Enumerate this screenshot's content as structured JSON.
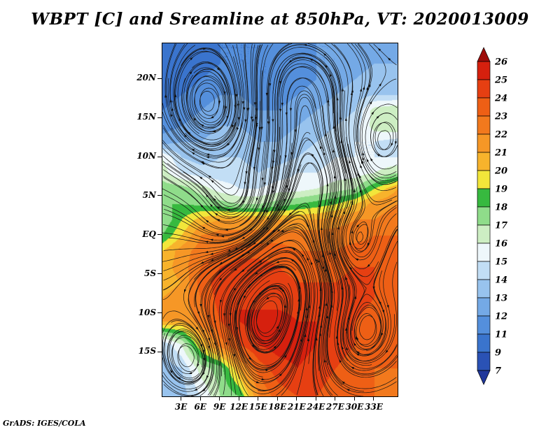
{
  "title": "WBPT [C] and Sreamline at 850hPa, VT: 2020013009",
  "footer": "GrADS: IGES/COLA",
  "axes": {
    "lat_labels": [
      "20N",
      "15N",
      "10N",
      "5N",
      "EQ",
      "5S",
      "10S",
      "15S"
    ],
    "lat_values": [
      20,
      15,
      10,
      5,
      0,
      -5,
      -10,
      -15
    ],
    "lon_labels": [
      "3E",
      "6E",
      "9E",
      "12E",
      "15E",
      "18E",
      "21E",
      "24E",
      "27E",
      "30E",
      "33E"
    ],
    "lon_values": [
      3,
      6,
      9,
      12,
      15,
      18,
      21,
      24,
      27,
      30,
      33
    ],
    "lon_range": [
      0,
      36.6
    ],
    "lat_range": [
      -20.6,
      24.6
    ]
  },
  "colorbar": {
    "labels": [
      "26",
      "25",
      "24",
      "23",
      "22",
      "21",
      "20",
      "19",
      "18",
      "17",
      "16",
      "15",
      "14",
      "13",
      "12",
      "11",
      "9",
      "7"
    ]
  },
  "chart_data": {
    "type": "heatmap",
    "title": "WBPT [C] and Sreamline at 850hPa, VT: 2020013009",
    "variable": "WBPT",
    "units": "C",
    "level": "850hPa",
    "valid_time": "2020013009",
    "overlay": "streamlines",
    "legend_position": "right",
    "levels": [
      7,
      9,
      11,
      12,
      13,
      14,
      15,
      16,
      17,
      18,
      19,
      20,
      21,
      22,
      23,
      24,
      25,
      26
    ],
    "palette": [
      "#20379b",
      "#2a52b5",
      "#3a74cd",
      "#548fdc",
      "#74a9e6",
      "#98c3ee",
      "#c2def5",
      "#eef7fb",
      "#cdeec3",
      "#8fdc8a",
      "#37b93f",
      "#f2e63a",
      "#f7b32c",
      "#f69726",
      "#f2791d",
      "#ee5f15",
      "#e63f12",
      "#d6200e",
      "#9e0d0a"
    ],
    "grid": {
      "lons": [
        0,
        3,
        6,
        9,
        12,
        15,
        18,
        21,
        24,
        27,
        30,
        33,
        36.6
      ],
      "lats": [
        24.6,
        22,
        20,
        18,
        16,
        14,
        12,
        10,
        8,
        6,
        4,
        2,
        0,
        -2,
        -4,
        -6,
        -8,
        -11,
        -14,
        -17,
        -20.6
      ],
      "values": [
        [
          10,
          10,
          10.5,
          11,
          11,
          11,
          11.5,
          12,
          12,
          12,
          12.5,
          12.5,
          12.5
        ],
        [
          9.5,
          10,
          10.5,
          11,
          11,
          11,
          11,
          11.5,
          12,
          12,
          12.5,
          13,
          13
        ],
        [
          10,
          10.5,
          11,
          11.5,
          11.5,
          11,
          11,
          11.5,
          12,
          12.5,
          13,
          13.5,
          13.5
        ],
        [
          10.5,
          11,
          11.5,
          12,
          12,
          11.5,
          11.5,
          12,
          12.5,
          13,
          13.5,
          14,
          14
        ],
        [
          11,
          11.5,
          12,
          12.5,
          12.5,
          12,
          12,
          12.5,
          13,
          13.5,
          14,
          16.5,
          17
        ],
        [
          11.5,
          12,
          12.5,
          13,
          13,
          12.5,
          12.5,
          13,
          13.5,
          14,
          14.5,
          16.5,
          17
        ],
        [
          12.5,
          13,
          13,
          13.5,
          13.5,
          13,
          13,
          13.5,
          14,
          14.5,
          15,
          15,
          14.5
        ],
        [
          16,
          14,
          13.5,
          14,
          14,
          13.5,
          13.5,
          14,
          14.5,
          15,
          15,
          15,
          15
        ],
        [
          16.5,
          15,
          14.5,
          14.5,
          14.5,
          14,
          14.5,
          15,
          15,
          15.5,
          15.5,
          16,
          17
        ],
        [
          17.5,
          17.5,
          16.5,
          15.5,
          15,
          15,
          15.5,
          15.5,
          16,
          16.5,
          17,
          19,
          21
        ],
        [
          18,
          18,
          17.8,
          17.5,
          17,
          17,
          17.5,
          18,
          18.5,
          19,
          20,
          21.5,
          22
        ],
        [
          17,
          19,
          20.5,
          21,
          21,
          21,
          21,
          21,
          21,
          21.5,
          22,
          22,
          22.5
        ],
        [
          18,
          20,
          22,
          22.5,
          22.5,
          22.5,
          22.5,
          22.5,
          22.5,
          22.5,
          22.5,
          23,
          23
        ],
        [
          20,
          21.5,
          22.5,
          23,
          23.5,
          23.5,
          23.5,
          23,
          23,
          23,
          23.5,
          23.5,
          23.5
        ],
        [
          20.5,
          21.5,
          23,
          24,
          24.5,
          24.5,
          24,
          23.5,
          23.5,
          23.5,
          24,
          24,
          23.5
        ],
        [
          20.5,
          21,
          23.5,
          24.5,
          24.5,
          24.5,
          24.5,
          24,
          24,
          24,
          24.5,
          24,
          23.5
        ],
        [
          21,
          21.5,
          23,
          24.5,
          25,
          24.5,
          24.5,
          24.5,
          24.5,
          24.5,
          24.5,
          24,
          23.5
        ],
        [
          21,
          21,
          22.5,
          24,
          25,
          25.5,
          25.5,
          25,
          25,
          24.5,
          24,
          23.5,
          23.5
        ],
        [
          14,
          16,
          20,
          22.5,
          24,
          25,
          25.5,
          25.5,
          25,
          24.5,
          24,
          23.5,
          23
        ],
        [
          13.5,
          14,
          16.5,
          17.5,
          21,
          23.5,
          24.5,
          25,
          24.5,
          24,
          23.5,
          23,
          23
        ],
        [
          13,
          13.5,
          15,
          17,
          18,
          22,
          23.5,
          24,
          24,
          23.5,
          23,
          23,
          22.5
        ]
      ]
    }
  }
}
